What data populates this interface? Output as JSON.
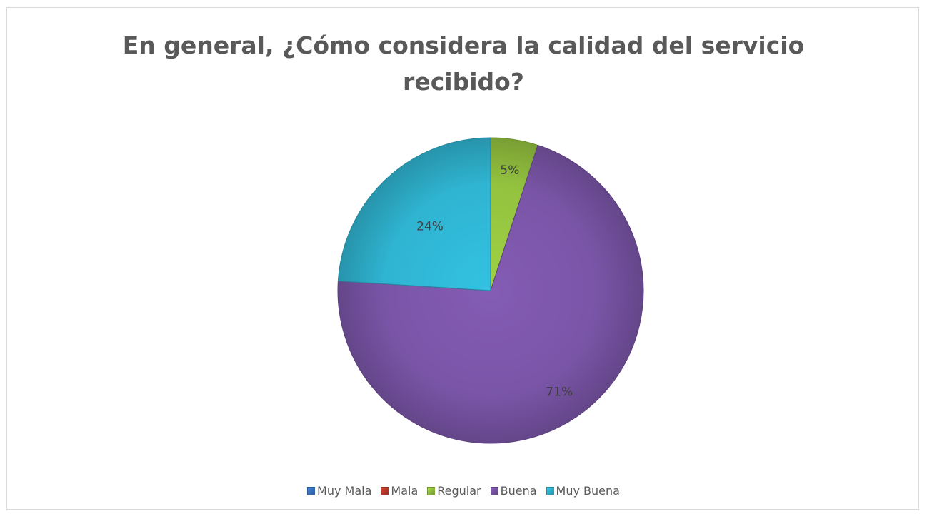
{
  "chart_data": {
    "type": "pie",
    "title": "En general, ¿Cómo considera la calidad del servicio recibido?",
    "title_lines": [
      "En general, ¿Cómo considera la calidad del servicio",
      "recibido?"
    ],
    "categories": [
      "Muy Mala",
      "Mala",
      "Regular",
      "Buena",
      "Muy Buena"
    ],
    "values": [
      0,
      0,
      5,
      71,
      24
    ],
    "data_labels": [
      "",
      "",
      "5%",
      "71%",
      "24%"
    ],
    "colors": [
      "#3a75c4",
      "#c0392b",
      "#93c23f",
      "#7a55a7",
      "#2fb4d1"
    ],
    "legend_position": "bottom"
  }
}
